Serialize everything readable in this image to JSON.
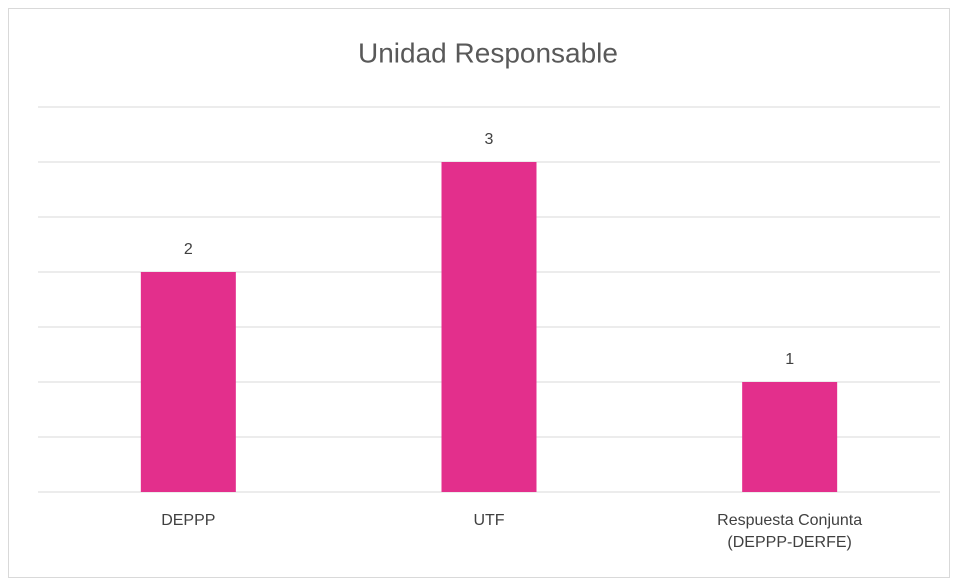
{
  "chart_data": {
    "type": "bar",
    "title": "Unidad Responsable",
    "categories": [
      "DEPPP",
      "UTF",
      "Respuesta Conjunta (DEPPP-DERFE)"
    ],
    "values": [
      2,
      3,
      1
    ],
    "color": "#e32f8c",
    "ylim": [
      0,
      3.5
    ],
    "yticks": [
      0,
      0.5,
      1,
      1.5,
      2,
      2.5,
      3,
      3.5
    ],
    "grid": true
  }
}
